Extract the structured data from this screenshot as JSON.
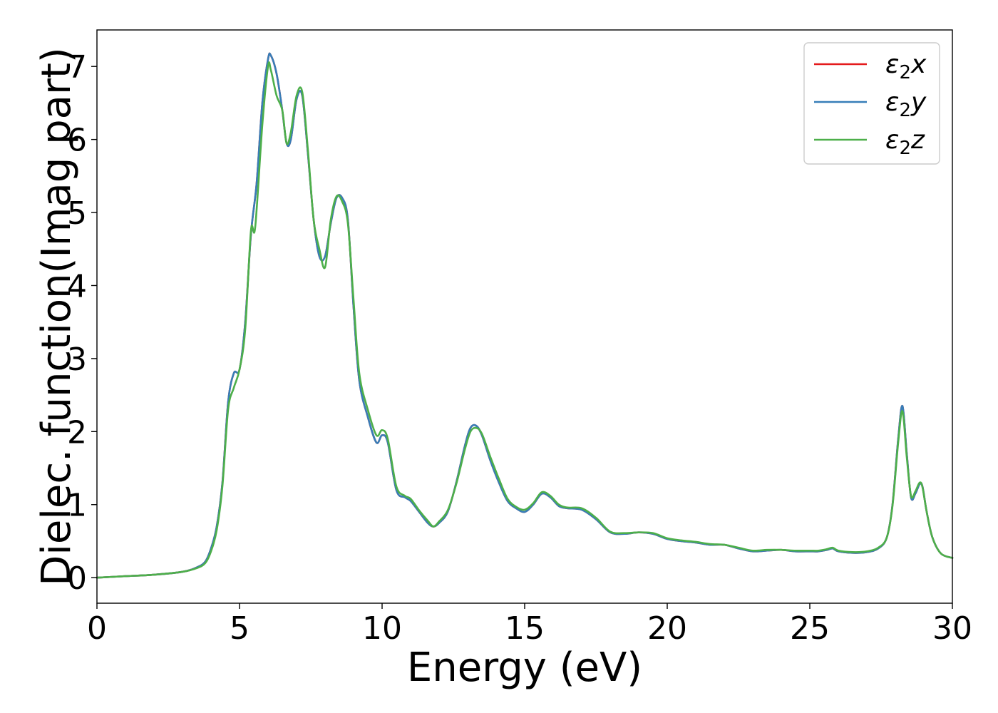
{
  "chart_data": {
    "type": "line",
    "xlabel": "Energy (eV)",
    "ylabel": "Dielec. function(Imag part)",
    "xlim": [
      0,
      30
    ],
    "ylim": [
      -0.35,
      7.5
    ],
    "xticks": [
      0,
      5,
      10,
      15,
      20,
      25,
      30
    ],
    "yticks": [
      0,
      1,
      2,
      3,
      4,
      5,
      6,
      7
    ],
    "grid": false,
    "legend_position": "top-right",
    "series": [
      {
        "name": "ε2x",
        "legend_base": "ε",
        "legend_sub": "2",
        "legend_var": "x",
        "color": "#e41a1c",
        "x": [
          0,
          1,
          2,
          3,
          3.5,
          3.8,
          4.0,
          4.2,
          4.4,
          4.6,
          4.8,
          5.0,
          5.2,
          5.4,
          5.6,
          5.8,
          6.0,
          6.1,
          6.3,
          6.5,
          6.65,
          6.8,
          7.0,
          7.2,
          7.4,
          7.6,
          7.8,
          8.0,
          8.2,
          8.4,
          8.6,
          8.8,
          9.0,
          9.2,
          9.5,
          9.8,
          10.0,
          10.2,
          10.5,
          10.8,
          11.0,
          11.3,
          11.6,
          11.8,
          12.0,
          12.3,
          12.6,
          12.9,
          13.1,
          13.3,
          13.5,
          13.8,
          14.1,
          14.4,
          14.7,
          15.0,
          15.3,
          15.6,
          15.9,
          16.2,
          16.5,
          17.0,
          17.5,
          18.0,
          18.5,
          19.0,
          19.5,
          20.0,
          20.5,
          21.0,
          21.5,
          22.0,
          22.5,
          23.0,
          23.5,
          24.0,
          24.5,
          25.0,
          25.3,
          25.6,
          25.8,
          26.0,
          26.5,
          27.0,
          27.4,
          27.7,
          27.9,
          28.1,
          28.25,
          28.4,
          28.55,
          28.7,
          28.85,
          28.95,
          29.1,
          29.3,
          29.6,
          30.0
        ],
        "values": [
          0.0,
          0.02,
          0.04,
          0.08,
          0.14,
          0.22,
          0.4,
          0.7,
          1.3,
          2.4,
          2.8,
          2.85,
          3.5,
          4.7,
          5.4,
          6.5,
          7.1,
          7.15,
          6.9,
          6.4,
          5.95,
          6.0,
          6.55,
          6.6,
          5.8,
          4.9,
          4.4,
          4.4,
          4.85,
          5.2,
          5.2,
          4.9,
          3.7,
          2.7,
          2.2,
          1.85,
          1.95,
          1.85,
          1.2,
          1.1,
          1.05,
          0.9,
          0.75,
          0.7,
          0.75,
          0.9,
          1.3,
          1.8,
          2.05,
          2.08,
          1.95,
          1.6,
          1.3,
          1.05,
          0.95,
          0.9,
          1.0,
          1.15,
          1.1,
          0.98,
          0.95,
          0.93,
          0.8,
          0.62,
          0.6,
          0.62,
          0.6,
          0.53,
          0.5,
          0.48,
          0.45,
          0.45,
          0.4,
          0.36,
          0.37,
          0.38,
          0.36,
          0.36,
          0.36,
          0.38,
          0.4,
          0.36,
          0.34,
          0.35,
          0.4,
          0.55,
          1.0,
          1.9,
          2.35,
          1.7,
          1.1,
          1.15,
          1.28,
          1.25,
          0.9,
          0.55,
          0.33,
          0.27
        ]
      },
      {
        "name": "ε2y",
        "legend_base": "ε",
        "legend_sub": "2",
        "legend_var": "y",
        "color": "#377eb8",
        "x": [
          0,
          1,
          2,
          3,
          3.5,
          3.8,
          4.0,
          4.2,
          4.4,
          4.6,
          4.8,
          5.0,
          5.2,
          5.4,
          5.6,
          5.8,
          6.0,
          6.1,
          6.3,
          6.5,
          6.65,
          6.8,
          7.0,
          7.2,
          7.4,
          7.6,
          7.8,
          8.0,
          8.2,
          8.4,
          8.6,
          8.8,
          9.0,
          9.2,
          9.5,
          9.8,
          10.0,
          10.2,
          10.5,
          10.8,
          11.0,
          11.3,
          11.6,
          11.8,
          12.0,
          12.3,
          12.6,
          12.9,
          13.1,
          13.3,
          13.5,
          13.8,
          14.1,
          14.4,
          14.7,
          15.0,
          15.3,
          15.6,
          15.9,
          16.2,
          16.5,
          17.0,
          17.5,
          18.0,
          18.5,
          19.0,
          19.5,
          20.0,
          20.5,
          21.0,
          21.5,
          22.0,
          22.5,
          23.0,
          23.5,
          24.0,
          24.5,
          25.0,
          25.3,
          25.6,
          25.8,
          26.0,
          26.5,
          27.0,
          27.4,
          27.7,
          27.9,
          28.1,
          28.25,
          28.4,
          28.55,
          28.7,
          28.85,
          28.95,
          29.1,
          29.3,
          29.6,
          30.0
        ],
        "values": [
          0.0,
          0.02,
          0.04,
          0.08,
          0.14,
          0.22,
          0.4,
          0.7,
          1.3,
          2.4,
          2.8,
          2.85,
          3.5,
          4.7,
          5.4,
          6.5,
          7.1,
          7.15,
          6.9,
          6.4,
          5.95,
          6.0,
          6.55,
          6.6,
          5.8,
          4.9,
          4.4,
          4.4,
          4.85,
          5.2,
          5.2,
          4.9,
          3.7,
          2.7,
          2.2,
          1.85,
          1.95,
          1.85,
          1.2,
          1.1,
          1.05,
          0.9,
          0.75,
          0.7,
          0.75,
          0.9,
          1.3,
          1.8,
          2.05,
          2.08,
          1.95,
          1.6,
          1.3,
          1.05,
          0.95,
          0.9,
          1.0,
          1.15,
          1.1,
          0.98,
          0.95,
          0.93,
          0.8,
          0.62,
          0.6,
          0.62,
          0.6,
          0.53,
          0.5,
          0.48,
          0.45,
          0.45,
          0.4,
          0.36,
          0.37,
          0.38,
          0.36,
          0.36,
          0.36,
          0.38,
          0.4,
          0.36,
          0.34,
          0.35,
          0.4,
          0.55,
          1.0,
          1.9,
          2.35,
          1.7,
          1.1,
          1.15,
          1.28,
          1.25,
          0.9,
          0.55,
          0.33,
          0.27
        ]
      },
      {
        "name": "ε2z",
        "legend_base": "ε",
        "legend_sub": "2",
        "legend_var": "z",
        "color": "#4daf4a",
        "x": [
          0,
          1,
          2,
          3,
          3.5,
          3.8,
          4.0,
          4.2,
          4.4,
          4.6,
          4.8,
          5.0,
          5.2,
          5.4,
          5.55,
          5.8,
          6.0,
          6.1,
          6.3,
          6.5,
          6.65,
          6.8,
          7.0,
          7.2,
          7.4,
          7.6,
          7.8,
          8.0,
          8.2,
          8.4,
          8.6,
          8.8,
          9.0,
          9.2,
          9.5,
          9.8,
          10.0,
          10.2,
          10.5,
          10.8,
          11.0,
          11.3,
          11.6,
          11.8,
          12.0,
          12.3,
          12.6,
          12.9,
          13.1,
          13.3,
          13.5,
          13.8,
          14.1,
          14.4,
          14.7,
          15.0,
          15.3,
          15.6,
          15.9,
          16.2,
          16.5,
          17.0,
          17.5,
          18.0,
          18.5,
          19.0,
          19.5,
          20.0,
          20.5,
          21.0,
          21.5,
          22.0,
          22.5,
          23.0,
          23.5,
          24.0,
          24.5,
          25.0,
          25.3,
          25.6,
          25.8,
          26.0,
          26.5,
          27.0,
          27.4,
          27.7,
          27.9,
          28.1,
          28.25,
          28.4,
          28.55,
          28.7,
          28.85,
          28.95,
          29.1,
          29.3,
          29.6,
          30.0
        ],
        "values": [
          0.0,
          0.02,
          0.04,
          0.08,
          0.13,
          0.2,
          0.36,
          0.65,
          1.25,
          2.3,
          2.6,
          2.85,
          3.4,
          4.75,
          4.8,
          6.2,
          7.0,
          6.95,
          6.6,
          6.4,
          5.95,
          6.1,
          6.6,
          6.65,
          5.85,
          4.9,
          4.5,
          4.25,
          4.9,
          5.22,
          5.15,
          4.85,
          3.8,
          2.8,
          2.3,
          1.95,
          2.02,
          1.9,
          1.25,
          1.12,
          1.08,
          0.92,
          0.78,
          0.7,
          0.77,
          0.92,
          1.28,
          1.75,
          2.0,
          2.05,
          1.97,
          1.65,
          1.35,
          1.08,
          0.97,
          0.93,
          1.02,
          1.17,
          1.12,
          1.0,
          0.96,
          0.95,
          0.82,
          0.63,
          0.61,
          0.62,
          0.61,
          0.54,
          0.51,
          0.49,
          0.46,
          0.45,
          0.41,
          0.37,
          0.38,
          0.38,
          0.37,
          0.37,
          0.37,
          0.39,
          0.41,
          0.37,
          0.35,
          0.36,
          0.41,
          0.55,
          0.98,
          1.85,
          2.28,
          1.65,
          1.12,
          1.18,
          1.3,
          1.24,
          0.9,
          0.55,
          0.33,
          0.27
        ]
      }
    ]
  }
}
